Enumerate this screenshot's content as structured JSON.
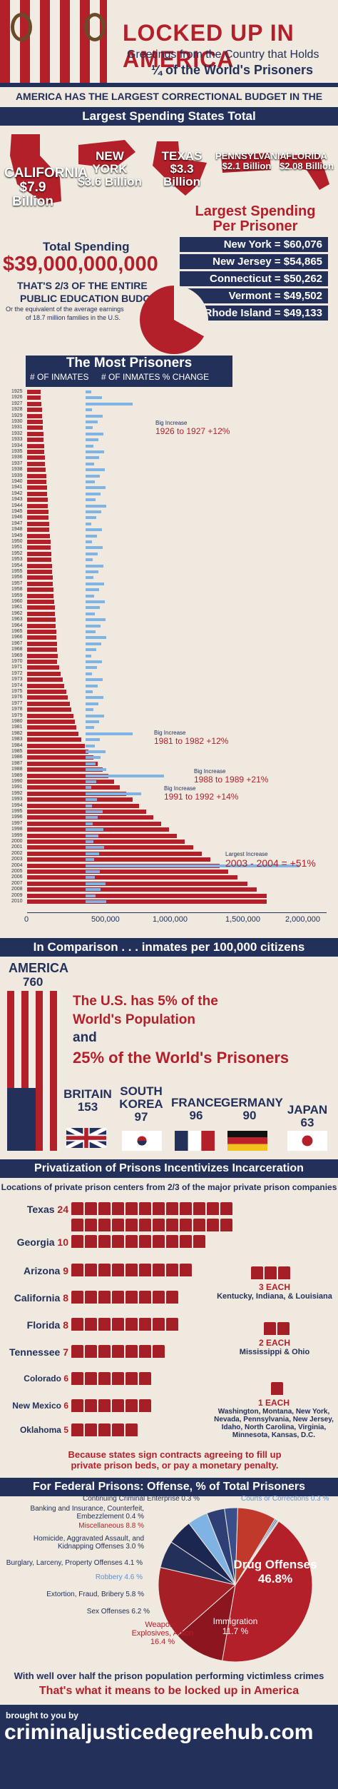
{
  "header": {
    "title": "LOCKED UP IN AMERICA",
    "subtitle": "Greetings from the Country that Holds",
    "subtitle2": "¼ of the World's Prisoners"
  },
  "banner1": "AMERICA HAS THE LARGEST CORRECTIONAL BUDGET IN THE WORLD.",
  "spending": {
    "title": "Largest Spending States Total",
    "states": [
      {
        "name": "CALIFORNIA",
        "value": "$7.9 Billion"
      },
      {
        "name": "NEW YORK",
        "value": "$3.6 Billion"
      },
      {
        "name": "TEXAS",
        "value": "$3.3 Billion"
      },
      {
        "name": "PENNSYLVANIA",
        "value": "$2.1 Billion"
      },
      {
        "name": "FLORIDA",
        "value": "$2.08 Billion"
      }
    ]
  },
  "perPrisoner": {
    "title1": "Largest Spending",
    "title2": "Per Prisoner",
    "rows": [
      {
        "label": "New York = $60,076"
      },
      {
        "label": "New Jersey = $54,865"
      },
      {
        "label": "Connecticut = $50,262"
      },
      {
        "label": "Vermont = $49,502"
      },
      {
        "label": "Rhode Island = $49,133"
      }
    ]
  },
  "total": {
    "label": "Total Spending",
    "amount": "$39,000,000,000",
    "line1": "THAT'S 2/3 OF THE ENTIRE",
    "line2": "PUBLIC EDUCATION BUDGET",
    "line3": "Or the equivalent of the average earnings",
    "line4": "of 18.7 million families in the U.S."
  },
  "chart_data": {
    "type": "bar",
    "title": "The Most Prisoners",
    "legend": [
      "# OF INMATES",
      "# OF INMATES % CHANGE"
    ],
    "x": [
      1925,
      1926,
      1927,
      1928,
      1929,
      1930,
      1931,
      1932,
      1933,
      1934,
      1935,
      1936,
      1937,
      1938,
      1939,
      1940,
      1941,
      1942,
      1943,
      1944,
      1945,
      1946,
      1947,
      1948,
      1949,
      1950,
      1951,
      1952,
      1953,
      1954,
      1955,
      1956,
      1957,
      1958,
      1959,
      1960,
      1961,
      1962,
      1963,
      1964,
      1965,
      1966,
      1967,
      1968,
      1969,
      1970,
      1971,
      1972,
      1973,
      1974,
      1975,
      1976,
      1977,
      1978,
      1979,
      1980,
      1981,
      1982,
      1983,
      1984,
      1985,
      1986,
      1987,
      1988,
      1989,
      1990,
      1991,
      1992,
      1993,
      1994,
      1995,
      1996,
      1997,
      1998,
      1999,
      2000,
      2001,
      2002,
      2003,
      2004,
      2005,
      2006,
      2007,
      2008,
      2009,
      2010
    ],
    "xlim": [
      0,
      2000000
    ],
    "xticks": [
      "0",
      "500,000",
      "1,000,000",
      "1,500,000",
      "2,000,000"
    ],
    "annotations": [
      {
        "label": "Big Increase",
        "text": "1926 to 1927 +12%"
      },
      {
        "label": "Big Increase",
        "text": "1981 to 1982 +12%"
      },
      {
        "label": "Big Increase",
        "text": "1988 to 1989 +21%"
      },
      {
        "label": "Big Increase",
        "text": "1991 to 1992 +14%"
      },
      {
        "label": "Largest Increase",
        "text": "2003 - 2004 = +51%"
      }
    ]
  },
  "comparison": {
    "title": "In Comparison . . . inmates per 100,000 citizens",
    "america": "AMERICA",
    "americaVal": "760",
    "text1": "The U.S. has 5% of the",
    "text2": "World's Population",
    "text3": "and",
    "text4": "25% of the World's Prisoners",
    "countries": [
      {
        "name": "BRITAIN",
        "val": "153"
      },
      {
        "name": "SOUTH KOREA",
        "val": "97"
      },
      {
        "name": "FRANCE",
        "val": "96"
      },
      {
        "name": "GERMANY",
        "val": "90"
      },
      {
        "name": "JAPAN",
        "val": "63"
      }
    ]
  },
  "privatization": {
    "title": "Privatization of Prisons Incentivizes Incarceration",
    "sub": "Locations of private prison centers from 2/3 of the major private prison companies",
    "states": [
      {
        "name": "Texas",
        "count": "24"
      },
      {
        "name": "Georgia",
        "count": "10"
      },
      {
        "name": "Arizona",
        "count": "9"
      },
      {
        "name": "California",
        "count": "8"
      },
      {
        "name": "Florida",
        "count": "8"
      },
      {
        "name": "Tennessee",
        "count": "7"
      },
      {
        "name": "Colorado",
        "count": "6"
      },
      {
        "name": "New Mexico",
        "count": "6"
      },
      {
        "name": "Oklahoma",
        "count": "5"
      }
    ],
    "each3": "3 EACH",
    "each3list": "Kentucky, Indiana, & Louisiana",
    "each2": "2 EACH",
    "each2list": "Mississippi & Ohio",
    "each1": "1 EACH",
    "each1list": "Washington, Montana, New York, Nevada, Pennsylvania, New Jersey, Idaho, North Carolina, Virginia, Minnesota, Kansas, D.C.",
    "note": "Because states sign contracts agreeing to fill up private prison beds, or pay a monetary penalty."
  },
  "federal": {
    "title": "For Federal Prisons: Offense, % of Total Prisoners",
    "slices": [
      {
        "name": "Drug Offenses",
        "val": "46.8%"
      },
      {
        "name": "Immigration",
        "val": "11.7 %"
      },
      {
        "name": "Weapons, Explosives, Arson",
        "val": "16.4 %"
      },
      {
        "name": "Sex Offenses",
        "val": "6.2 %"
      },
      {
        "name": "Extortion, Fraud, Bribery",
        "val": "5.8 %"
      },
      {
        "name": "Robbery",
        "val": "4.6 %"
      },
      {
        "name": "Burglary, Larceny, Property Offenses",
        "val": "4.1 %"
      },
      {
        "name": "Homicide, Aggravated Assault, and Kidnapping Offenses",
        "val": "3.0 %"
      },
      {
        "name": "Miscellaneous",
        "val": "8.8 %"
      },
      {
        "name": "Banking and Insurance, Counterfeit, Embezzlement",
        "val": "0.4 %"
      },
      {
        "name": "Continuing Criminal Enterprise",
        "val": "0.3 %"
      },
      {
        "name": "Courts or Corrections",
        "val": "0.3 %"
      }
    ],
    "c1": "With well over half the prison population performing victimless crimes",
    "c2": "That's what it means to be locked up in America"
  },
  "footer": {
    "by": "brought to you by",
    "site": "criminaljusticedegreehub.com"
  }
}
